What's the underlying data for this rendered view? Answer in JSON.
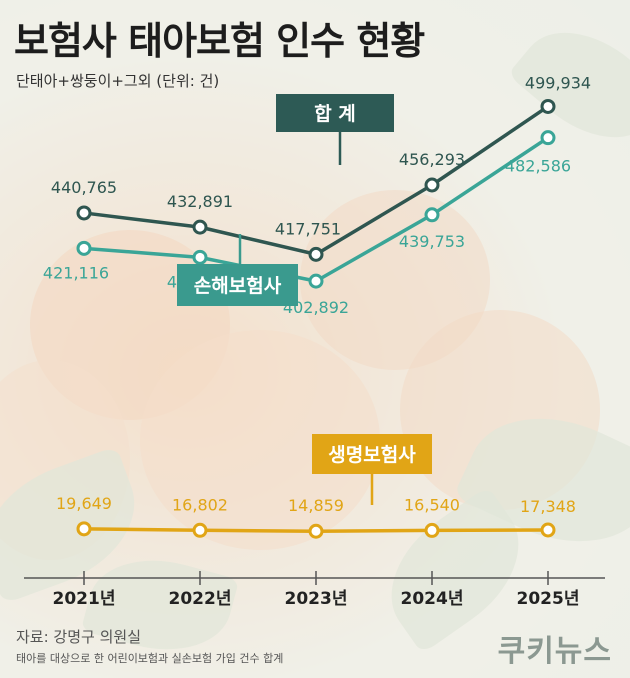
{
  "header": {
    "title": "보험사 태아보험 인수 현황",
    "subtitle": "단태아+쌍둥이+그외 (단위: 건)"
  },
  "footer": {
    "source": "자료: 강명구 의원실",
    "note": "태아를 대상으로 한 어린이보험과 실손보험 가입 건수 합계",
    "brand": "쿠키뉴스"
  },
  "colors": {
    "total": "#2f5650",
    "nonlife": "#3aa597",
    "life": "#e1a516",
    "callout_total": "#2d5a55",
    "callout_nonlife": "#3a9a8e",
    "callout_life": "#e1a516"
  },
  "chart_data": {
    "type": "line",
    "title": "보험사 태아보험 인수 현황",
    "categories": [
      "2021년",
      "2022년",
      "2023년",
      "2024년",
      "2025년"
    ],
    "series": [
      {
        "name": "합 계",
        "values": [
          440765,
          432891,
          417751,
          456293,
          499934
        ],
        "labels": [
          "440,765",
          "432,891",
          "417,751",
          "456,293",
          "499,934"
        ]
      },
      {
        "name": "손해보험사",
        "values": [
          421116,
          416089,
          402892,
          439753,
          482586
        ],
        "labels": [
          "421,116",
          "416,089",
          "402,892",
          "439,753",
          "482,586"
        ]
      },
      {
        "name": "생명보험사",
        "values": [
          19649,
          16802,
          14859,
          16540,
          17348
        ],
        "labels": [
          "19,649",
          "16,802",
          "14,859",
          "16,540",
          "17,348"
        ]
      }
    ],
    "legend": "callouts"
  }
}
